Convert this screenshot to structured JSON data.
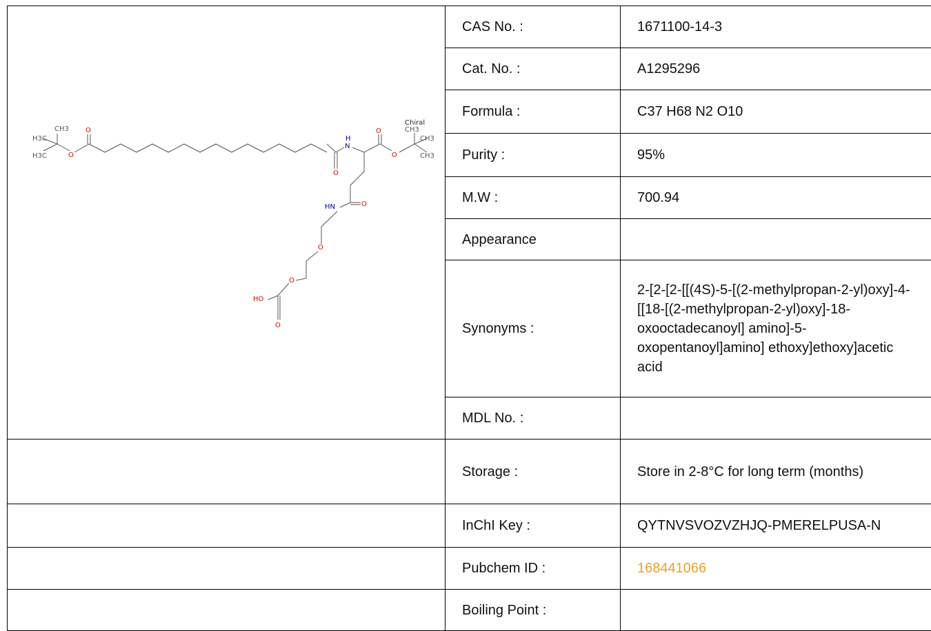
{
  "table": {
    "rows": [
      {
        "label": "CAS No. :",
        "value": "1671100-14-3"
      },
      {
        "label": "Cat. No. :",
        "value": "A1295296"
      },
      {
        "label": "Formula :",
        "value": "C37 H68 N2 O10"
      },
      {
        "label": "Purity :",
        "value": "95%"
      },
      {
        "label": "M.W :",
        "value": "700.94"
      },
      {
        "label": "Appearance"
      },
      {
        "label": "Synonyms :",
        "value": "2-[2-[2-[[(4S)-5-[(2-methylpropan-2-yl)oxy]-4-[[18-[(2-methylpropan-2-yl)oxy]-18-oxooctadecanoyl] amino]-5-oxopentanoyl]amino] ethoxy]ethoxy]acetic acid"
      },
      {
        "label": "MDL No. :"
      },
      {
        "label": "Storage :",
        "value": "Store in 2-8°C for long term (months)"
      },
      {
        "label": "InChI Key :",
        "value": "QYTNVSVOZVZHJQ-PMERELPUSA-N"
      },
      {
        "label": "Pubchem ID :",
        "value": "168441066"
      },
      {
        "label": "Boiling Point :"
      }
    ]
  },
  "structure": {
    "labels": [
      "H3C",
      "CH3",
      "H3C",
      "O",
      "O",
      "H",
      "N",
      "O",
      "Chiral",
      "CH3",
      "CH3",
      "CH3",
      "O",
      "O",
      "HN",
      "O",
      "O",
      "O",
      "HO",
      "O"
    ]
  }
}
